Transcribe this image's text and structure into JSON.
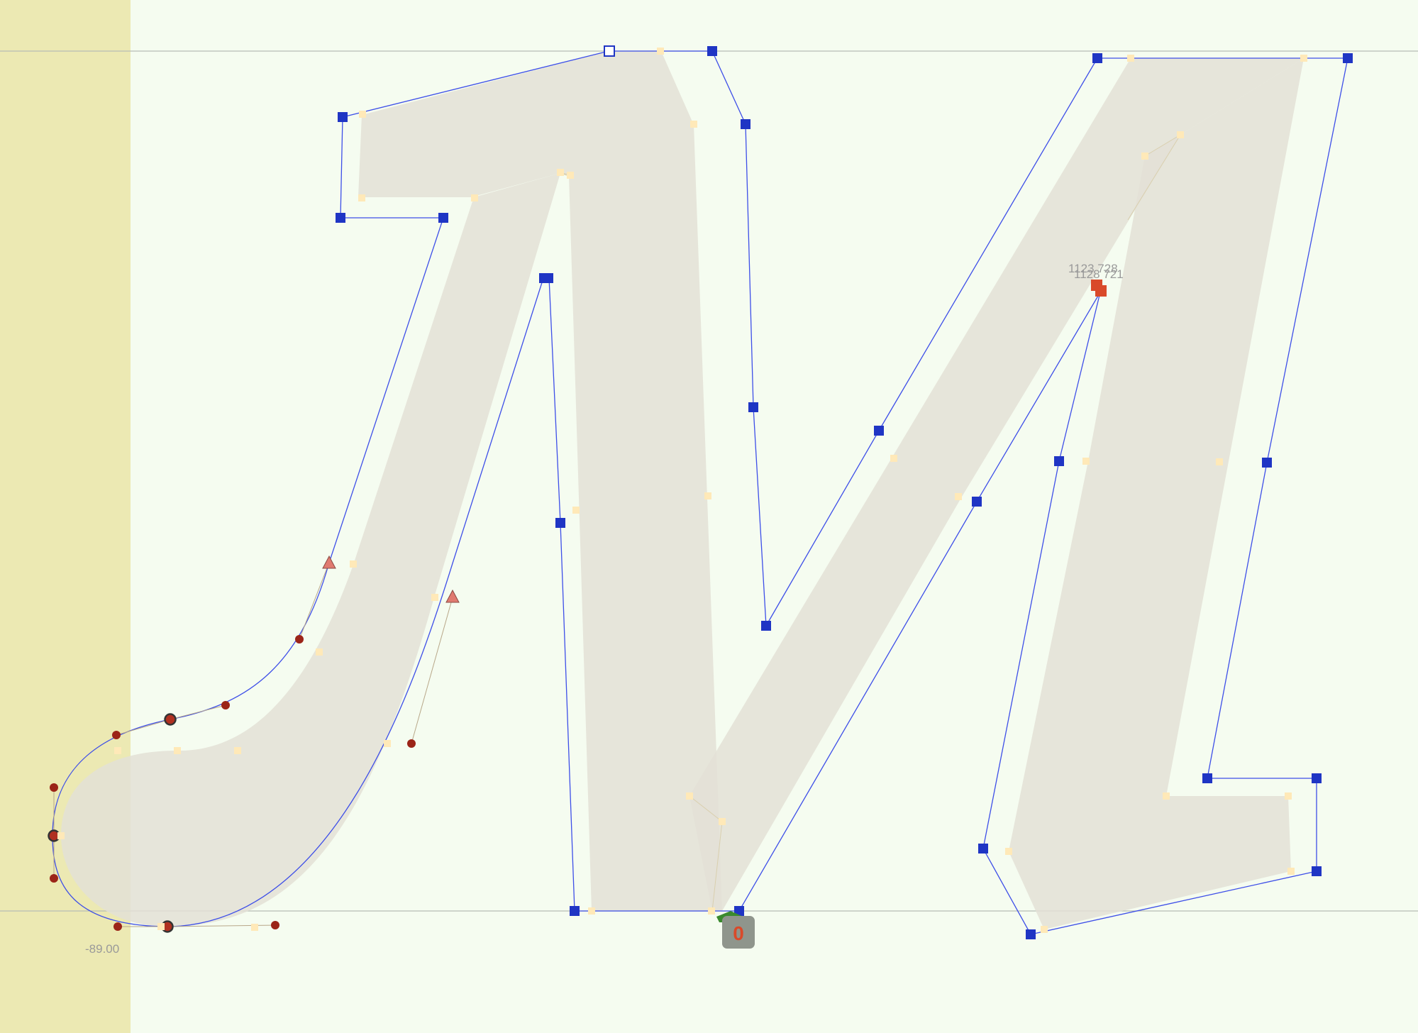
{
  "editor": {
    "sidebearing_value": "-89.00",
    "node_coordinate_primary": "1123 728",
    "node_coordinate_secondary": "1128 721",
    "origin_badge": "0"
  },
  "colors": {
    "canvas_background": "#f5fcf0",
    "sidebearing_area": "#ece9b3",
    "glyph_fill": "#e8e6df",
    "outline_stroke": "#3d4ee8",
    "node": "#1f35c4",
    "handle": "#9b2418",
    "selected_node": "#d94a2a",
    "on_curve_marker": "#ffe9b8",
    "guideline": "#b7bdb5",
    "origin_badge": "#8f958c",
    "origin_badge_text": "#d94a2a",
    "anchor_marker": "#3a8a2e"
  },
  "icons": {
    "smooth_node": "circle-node-icon",
    "corner_node": "square-node-icon",
    "tangent_node": "triangle-node-icon",
    "origin_anchor": "anchor-icon"
  }
}
